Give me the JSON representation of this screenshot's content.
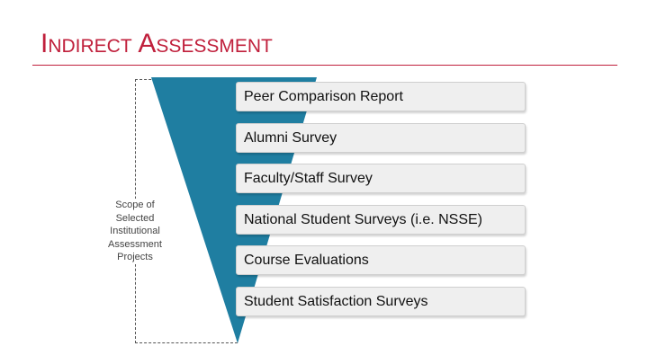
{
  "title": "Indirect Assessment",
  "scope_label": "Scope of Selected Institutional Assessment Projects",
  "items": [
    "Peer Comparison Report",
    "Alumni Survey",
    "Faculty/Staff Survey",
    "National Student Surveys (i.e. NSSE)",
    "Course Evaluations",
    "Student Satisfaction Surveys"
  ],
  "colors": {
    "title": "#c0203c",
    "funnel": "#1f7ea1",
    "box": "#efefef"
  }
}
